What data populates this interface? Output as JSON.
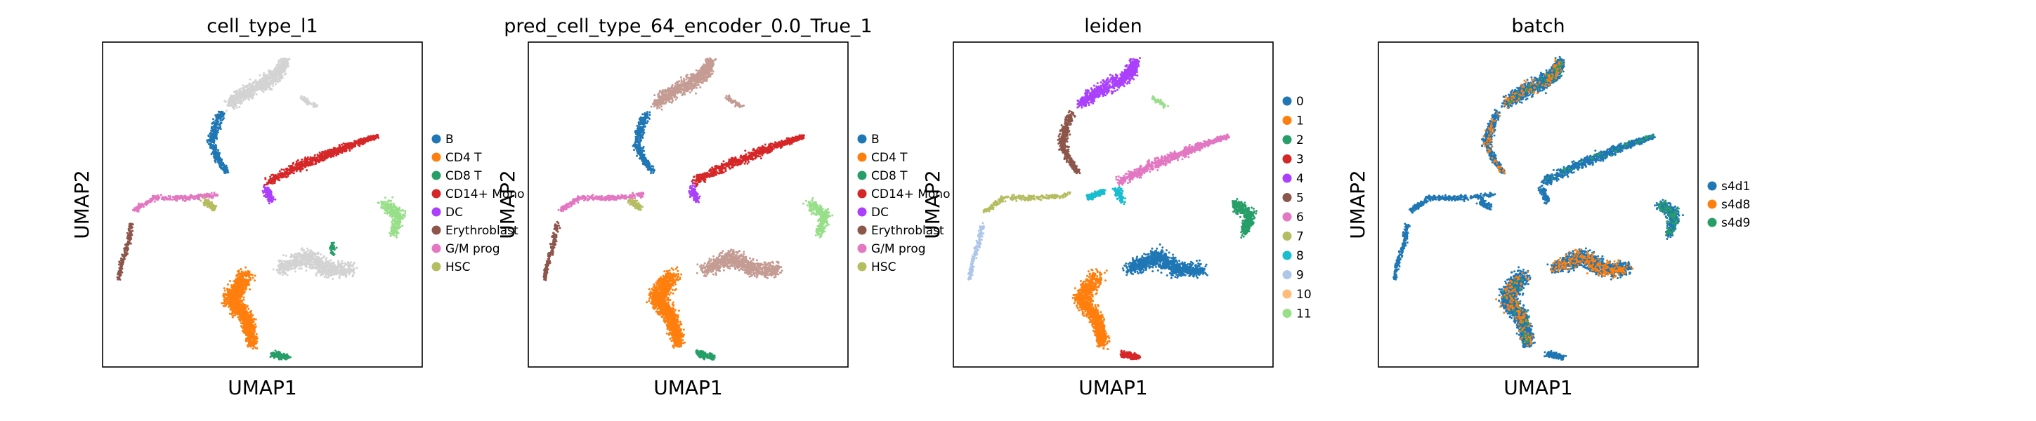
{
  "figure": {
    "background": "#ffffff"
  },
  "chart_data": [
    {
      "type": "scatter",
      "title": "cell_type_l1",
      "xlabel": "UMAP1",
      "ylabel": "UMAP2",
      "grid": false,
      "legend": {
        "placement": "right",
        "entries": [
          {
            "label": "B",
            "color": "#1f77b4"
          },
          {
            "label": "CD4 T",
            "color": "#ff7f0e"
          },
          {
            "label": "CD8 T",
            "color": "#279e68"
          },
          {
            "label": "CD14+ Mono",
            "color": "#d62728"
          },
          {
            "label": "DC",
            "color": "#aa40fc"
          },
          {
            "label": "Erythroblast",
            "color": "#8c564b"
          },
          {
            "label": "G/M prog",
            "color": "#e377c2"
          },
          {
            "label": "HSC",
            "color": "#b5bd61"
          }
        ]
      },
      "unlabeled_color": "#d3d3d3"
    },
    {
      "type": "scatter",
      "title": "pred_cell_type_64_encoder_0.0_True_1",
      "xlabel": "UMAP1",
      "ylabel": "UMAP2",
      "grid": false,
      "legend": {
        "placement": "right",
        "entries": [
          {
            "label": "B",
            "color": "#1f77b4"
          },
          {
            "label": "CD4 T",
            "color": "#ff7f0e"
          },
          {
            "label": "CD8 T",
            "color": "#279e68"
          },
          {
            "label": "CD14+ Mono",
            "color": "#d62728"
          },
          {
            "label": "DC",
            "color": "#aa40fc"
          },
          {
            "label": "Erythroblast",
            "color": "#8c564b"
          },
          {
            "label": "G/M prog",
            "color": "#e377c2"
          },
          {
            "label": "HSC",
            "color": "#b5bd61"
          }
        ]
      }
    },
    {
      "type": "scatter",
      "title": "leiden",
      "xlabel": "UMAP1",
      "ylabel": "UMAP2",
      "grid": false,
      "legend": {
        "placement": "right",
        "entries": [
          {
            "label": "0",
            "color": "#1f77b4"
          },
          {
            "label": "1",
            "color": "#ff7f0e"
          },
          {
            "label": "2",
            "color": "#279e68"
          },
          {
            "label": "3",
            "color": "#d62728"
          },
          {
            "label": "4",
            "color": "#aa40fc"
          },
          {
            "label": "5",
            "color": "#8c564b"
          },
          {
            "label": "6",
            "color": "#e377c2"
          },
          {
            "label": "7",
            "color": "#b5bd61"
          },
          {
            "label": "8",
            "color": "#17becf"
          },
          {
            "label": "9",
            "color": "#aec7e8"
          },
          {
            "label": "10",
            "color": "#ffbb78"
          },
          {
            "label": "11",
            "color": "#98df8a"
          }
        ]
      }
    },
    {
      "type": "scatter",
      "title": "batch",
      "xlabel": "UMAP1",
      "ylabel": "UMAP2",
      "grid": false,
      "legend": {
        "placement": "right",
        "entries": [
          {
            "label": "s4d1",
            "color": "#1f77b4"
          },
          {
            "label": "s4d8",
            "color": "#ff7f0e"
          },
          {
            "label": "s4d9",
            "color": "#279e68"
          }
        ]
      }
    }
  ]
}
